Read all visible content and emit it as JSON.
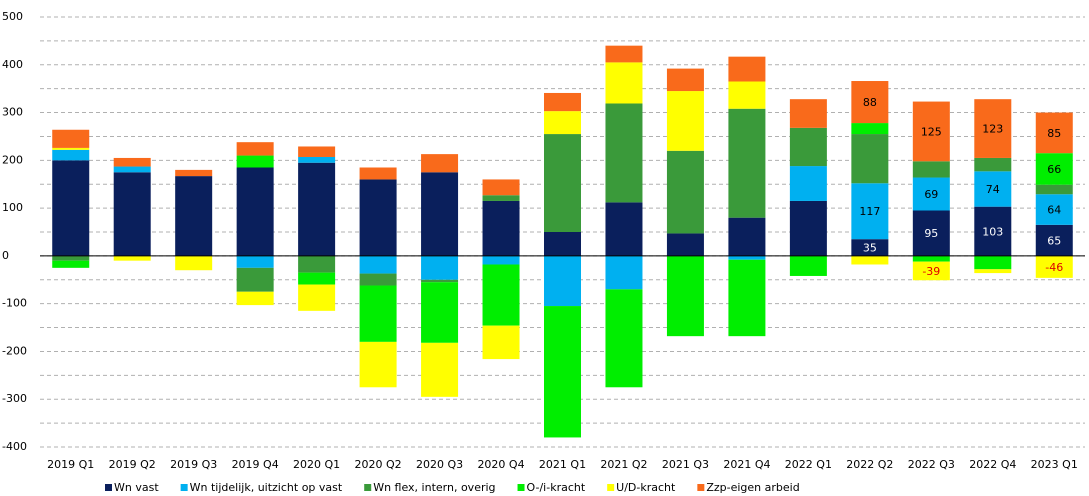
{
  "chart_data": {
    "type": "stacked_bar",
    "categories": [
      "2019 Q1",
      "2019 Q2",
      "2019 Q3",
      "2019 Q4",
      "2020 Q1",
      "2020 Q2",
      "2020 Q3",
      "2020 Q4",
      "2021 Q1",
      "2021 Q2",
      "2021 Q3",
      "2021 Q4",
      "2022 Q1",
      "2022 Q2",
      "2022 Q3",
      "2022 Q4",
      "2023 Q1"
    ],
    "ylim": [
      -400,
      500
    ],
    "yticks": [
      -400,
      -300,
      -200,
      -100,
      0,
      100,
      200,
      300,
      400,
      500
    ],
    "grid": true,
    "legend": "bottom",
    "series": [
      {
        "name": "Wn vast",
        "color": "#0a1f5c",
        "values": [
          200,
          175,
          167,
          185,
          195,
          160,
          175,
          115,
          50,
          112,
          47,
          80,
          115,
          35,
          95,
          103,
          65
        ],
        "value_labels": [
          null,
          null,
          null,
          null,
          null,
          null,
          null,
          null,
          null,
          null,
          null,
          null,
          null,
          "35",
          "95",
          "103",
          "65"
        ]
      },
      {
        "name": "Wn tijdelijk, uitzicht op vast",
        "color": "#00b0f0",
        "values": [
          22,
          12,
          0,
          -25,
          12,
          -37,
          -50,
          -18,
          -105,
          -70,
          0,
          -8,
          73,
          117,
          69,
          74,
          64
        ],
        "value_labels": [
          null,
          null,
          null,
          null,
          null,
          null,
          null,
          null,
          null,
          null,
          null,
          null,
          null,
          "117",
          "69",
          "74",
          "64"
        ]
      },
      {
        "name": "Wn flex, intern, overig",
        "color": "#3a9a3a",
        "values": [
          -10,
          0,
          0,
          -50,
          -35,
          -25,
          -5,
          12,
          205,
          207,
          173,
          228,
          80,
          103,
          34,
          28,
          20
        ]
      },
      {
        "name": "O-/i-kracht",
        "color": "#00ee00",
        "values": [
          -15,
          0,
          0,
          25,
          -25,
          -118,
          -127,
          -128,
          -275,
          -205,
          -168,
          -160,
          -42,
          23,
          -12,
          -28,
          66
        ],
        "value_labels": [
          null,
          null,
          null,
          null,
          null,
          null,
          null,
          null,
          null,
          null,
          null,
          null,
          null,
          null,
          null,
          null,
          "66"
        ]
      },
      {
        "name": "U/D-kracht",
        "color": "#ffff00",
        "values": [
          4,
          -10,
          -30,
          -28,
          -55,
          -95,
          -113,
          -70,
          48,
          86,
          125,
          57,
          0,
          -18,
          -39,
          -8,
          -46
        ],
        "value_labels": [
          null,
          null,
          null,
          null,
          null,
          null,
          null,
          null,
          null,
          null,
          null,
          null,
          null,
          null,
          "-39",
          null,
          "-46"
        ]
      },
      {
        "name": "Zzp-eigen arbeid",
        "color": "#f96a1b",
        "values": [
          38,
          18,
          13,
          28,
          22,
          25,
          38,
          33,
          38,
          35,
          47,
          52,
          60,
          88,
          125,
          123,
          85
        ],
        "value_labels": [
          null,
          null,
          null,
          null,
          null,
          null,
          null,
          null,
          null,
          null,
          null,
          null,
          null,
          "88",
          "125",
          "123",
          "85"
        ]
      }
    ]
  }
}
